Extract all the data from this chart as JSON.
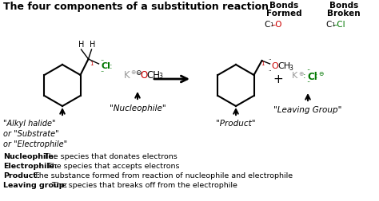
{
  "title": "The four components of a substitution reaction",
  "bg_color": "#ffffff",
  "bonds_formed_label": "Bonds\nFormed",
  "bonds_broken_label": "Bonds\nBroken",
  "bottom_lines": [
    {
      "bold": "Nucleophile:",
      "normal": " The species that donates electrons"
    },
    {
      "bold": "Electrophile:",
      "normal": " The species that accepts electrons"
    },
    {
      "bold": "Product:",
      "normal": " The substance formed from reaction of nucleophile and electrophile"
    },
    {
      "bold": "Leaving group:",
      "normal": " The species that breaks off from the electrophile"
    }
  ],
  "label0": "\"Alkyl halide\"\nor \"Substrate\"\nor \"Electrophile\"",
  "label1": "\"Nucleophile\"",
  "label2": "\"Product\"",
  "label3": "\"Leaving Group\"",
  "red": "#cc0000",
  "green": "#007700",
  "gray": "#999999",
  "black": "#000000"
}
